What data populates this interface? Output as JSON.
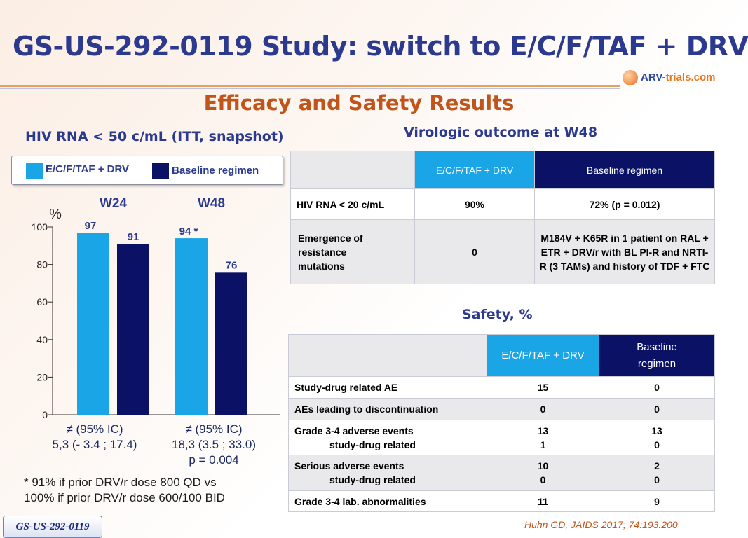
{
  "header": {
    "title": "GS-US-292-0119 Study: switch to E/C/F/TAF + DRV",
    "logo_text_main": "ARV-",
    "logo_text_accent": "trials",
    "logo_text_domain": ".com",
    "subtitle": "Efficacy and Safety Results"
  },
  "left": {
    "section_title": "HIV RNA < 50 c/mL (ITT, snapshot)",
    "legend": [
      {
        "label": "E/C/F/TAF + DRV",
        "color": "#1aa6e6"
      },
      {
        "label": "Baseline regimen",
        "color": "#0b1266"
      }
    ],
    "footnote_line1": "* 91% if prior DRV/r dose 800 QD vs",
    "footnote_line2": "100% if prior DRV/r dose 600/100 BID"
  },
  "chart_data": {
    "type": "bar",
    "title": "HIV RNA < 50 c/mL (ITT, snapshot)",
    "ylabel": "%",
    "ylim": [
      0,
      100
    ],
    "yticks": [
      0,
      20,
      40,
      60,
      80,
      100
    ],
    "categories": [
      "W24",
      "W48"
    ],
    "series": [
      {
        "name": "E/C/F/TAF + DRV",
        "values": [
          97,
          94
        ],
        "labels": [
          "97",
          "94 *"
        ],
        "color": "#1aa6e6"
      },
      {
        "name": "Baseline regimen",
        "values": [
          91,
          76
        ],
        "labels": [
          "91",
          "76"
        ],
        "color": "#0b1266"
      }
    ],
    "annotations": [
      {
        "group": "W24",
        "lines": [
          "≠ (95% IC)",
          "5,3 (- 3.4 ; 17.4)"
        ]
      },
      {
        "group": "W48",
        "lines": [
          "≠ (95% IC)",
          "18,3  (3.5 ; 33.0)",
          "p = 0.004"
        ]
      }
    ]
  },
  "virologic": {
    "section_title": "Virologic outcome at W48",
    "headers": [
      "",
      "E/C/F/TAF + DRV",
      "Baseline regimen"
    ],
    "rows": [
      {
        "label": "HIV RNA < 20 c/mL",
        "a": "90%",
        "b": "72% (p = 0.012)"
      },
      {
        "label": "Emergence of resistance mutations",
        "a": "0",
        "b": "M184V + K65R in 1 patient on RAL + ETR + DRV/r with  BL PI-R and NRTI-R (3 TAMs) and history of TDF + FTC"
      }
    ]
  },
  "safety": {
    "section_title": "Safety, %",
    "headers": [
      "",
      "E/C/F/TAF + DRV",
      "Baseline regimen"
    ],
    "rows": [
      {
        "label": "Study-drug related AE",
        "sub": "",
        "a": "15",
        "a2": "",
        "b": "0",
        "b2": ""
      },
      {
        "label": "AEs leading to discontinuation",
        "sub": "",
        "a": "0",
        "a2": "",
        "b": "0",
        "b2": ""
      },
      {
        "label": "Grade 3-4 adverse events",
        "sub": "study-drug related",
        "a": "13",
        "a2": "1",
        "b": "13",
        "b2": "0"
      },
      {
        "label": "Serious adverse events",
        "sub": "study-drug related",
        "a": "10",
        "a2": "0",
        "b": "2",
        "b2": "0"
      },
      {
        "label": "Grade 3-4 lab. abnormalities",
        "sub": "",
        "a": "11",
        "a2": "",
        "b": "9",
        "b2": ""
      }
    ]
  },
  "footer": {
    "badge": "GS-US-292-0119",
    "reference": "Huhn GD, JAIDS 2017; 74:193.200"
  }
}
